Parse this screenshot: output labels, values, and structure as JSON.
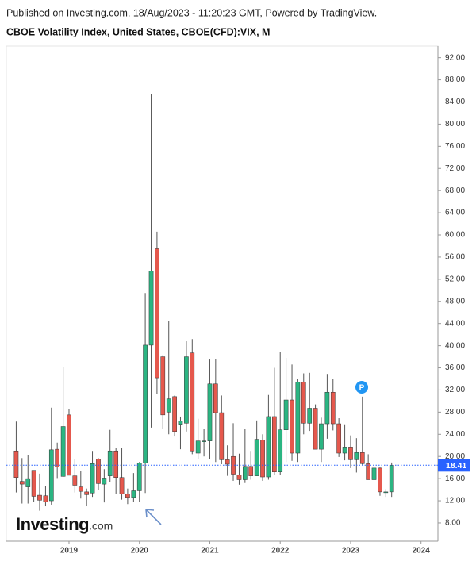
{
  "header": {
    "published": "Published on Investing.com, 18/Aug/2023 - 11:20:23 GMT, Powered by TradingView.",
    "title": "CBOE Volatility Index, United States, CBOE(CFD):VIX, M"
  },
  "logo": {
    "brand": "Investing",
    "suffix": ".com"
  },
  "badge": "P",
  "chart_data": {
    "type": "candlestick",
    "x": [
      2018.25,
      2018.333,
      2018.417,
      2018.5,
      2018.583,
      2018.667,
      2018.75,
      2018.833,
      2018.917,
      2019,
      2019.083,
      2019.167,
      2019.25,
      2019.333,
      2019.417,
      2019.5,
      2019.583,
      2019.667,
      2019.75,
      2019.833,
      2019.917,
      2020,
      2020.083,
      2020.167,
      2020.25,
      2020.333,
      2020.417,
      2020.5,
      2020.583,
      2020.667,
      2020.75,
      2020.833,
      2020.917,
      2021,
      2021.083,
      2021.167,
      2021.25,
      2021.333,
      2021.417,
      2021.5,
      2021.583,
      2021.667,
      2021.75,
      2021.833,
      2021.917,
      2022,
      2022.083,
      2022.167,
      2022.25,
      2022.333,
      2022.417,
      2022.5,
      2022.583,
      2022.667,
      2022.75,
      2022.833,
      2022.917,
      2023,
      2023.083,
      2023.167,
      2023.25,
      2023.333,
      2023.417,
      2023.5,
      2023.583
    ],
    "open": [
      21,
      15.5,
      14.5,
      17.5,
      13,
      12.9,
      12,
      21.3,
      16.4,
      27.5,
      16.5,
      14.5,
      13.6,
      13.4,
      19.5,
      15,
      16.5,
      21,
      16.2,
      13.2,
      12.6,
      13.8,
      18.8,
      40.1,
      57.5,
      38,
      28,
      30.8,
      25.8,
      26,
      38.7,
      20.6,
      22.8,
      22.8,
      33.1,
      27.9,
      19.4,
      20,
      16.7,
      15.8,
      18.2,
      16.5,
      23,
      16.3,
      27.2,
      17.2,
      24.8,
      30.2,
      20.6,
      33.4,
      26,
      28.7,
      21.3,
      25.9,
      31.6,
      25.9,
      20.6,
      21.7,
      19.4,
      20.7,
      18.7,
      15.8,
      17.9,
      13.6,
      13.6
    ],
    "high": [
      26.3,
      19.7,
      20.3,
      17.5,
      16.9,
      14.6,
      28.8,
      22.5,
      36.2,
      28.5,
      19.5,
      17.4,
      14.2,
      21,
      19.7,
      17.7,
      24.8,
      21.5,
      21.5,
      14.2,
      17,
      19,
      49.5,
      85.5,
      60.6,
      38.3,
      44.4,
      31,
      27.2,
      40.8,
      41.2,
      26.8,
      25,
      37.5,
      37.5,
      31,
      22,
      26,
      20.5,
      25,
      21,
      26.5,
      24,
      31.1,
      36,
      38.9,
      37.8,
      36.6,
      34,
      35,
      35.1,
      29.4,
      27,
      34.9,
      34,
      26.9,
      25.8,
      23.8,
      23.3,
      30.8,
      20.4,
      21.5,
      18,
      14.1,
      18.9
    ],
    "low": [
      13.5,
      11.5,
      11.5,
      11.8,
      10.2,
      11,
      11.3,
      16.1,
      16.3,
      16.7,
      13.5,
      12.4,
      11,
      12.7,
      13.9,
      11.7,
      15.4,
      13.3,
      12.2,
      11.4,
      11.8,
      11.8,
      13.4,
      25.2,
      31.2,
      25,
      24,
      23.6,
      21.3,
      24.5,
      20.4,
      19.5,
      20,
      19.5,
      19,
      18.6,
      16.5,
      15.6,
      14.9,
      15.2,
      15.8,
      16.5,
      15.6,
      15.8,
      16.6,
      16.6,
      19,
      19.2,
      19,
      24,
      24.6,
      21.9,
      19,
      23.2,
      24.7,
      19.9,
      19.3,
      17.9,
      17.1,
      18.4,
      15.8,
      15.6,
      12.9,
      12.7,
      12.7
    ],
    "close": [
      16.2,
      15,
      16,
      12.8,
      12.1,
      11.8,
      21.2,
      18.1,
      25.4,
      16.6,
      14.8,
      13.7,
      13.1,
      18.7,
      15.1,
      16.1,
      21,
      16.2,
      13.2,
      12.6,
      13.8,
      18.8,
      40.1,
      53.5,
      34.2,
      27.5,
      30.4,
      24.5,
      26.4,
      38,
      21,
      22.8,
      22.8,
      33.1,
      27.9,
      19.4,
      18.6,
      16.8,
      15.8,
      18.2,
      16.5,
      23.1,
      16.3,
      27.2,
      17.2,
      24.8,
      30.2,
      20.6,
      33.4,
      26,
      28.7,
      21.3,
      25.9,
      31.6,
      25.9,
      20.6,
      21.7,
      19.4,
      20.7,
      18.7,
      15.8,
      17.9,
      13.6,
      13.6,
      18.41
    ],
    "up_color": "#2bb582",
    "down_color": "#e5584d",
    "last_price": 18.41,
    "xlim": [
      2018.11,
      2024.24
    ],
    "xticks": [
      2019,
      2020,
      2021,
      2022,
      2023,
      2024
    ],
    "ylim": [
      4.7,
      94.1
    ],
    "yticks": [
      {
        "value": 8,
        "label": "8.00"
      },
      {
        "value": 12,
        "label": "12.00"
      },
      {
        "value": 16,
        "label": "16.00"
      },
      {
        "value": 20,
        "label": "20.00"
      },
      {
        "value": 24,
        "label": "24.00"
      },
      {
        "value": 28,
        "label": "28.00"
      },
      {
        "value": 32,
        "label": "32.00"
      },
      {
        "value": 36,
        "label": "36.00"
      },
      {
        "value": 40,
        "label": "40.00"
      },
      {
        "value": 44,
        "label": "44.00"
      },
      {
        "value": 48,
        "label": "48.00"
      },
      {
        "value": 52,
        "label": "52.00"
      },
      {
        "value": 56,
        "label": "56.00"
      },
      {
        "value": 60,
        "label": "60.00"
      },
      {
        "value": 64,
        "label": "64.00"
      },
      {
        "value": 68,
        "label": "68.00"
      },
      {
        "value": 72,
        "label": "72.00"
      },
      {
        "value": 76,
        "label": "76.00"
      },
      {
        "value": 80,
        "label": "80.00"
      },
      {
        "value": 84,
        "label": "84.00"
      },
      {
        "value": 88,
        "label": "88.00"
      },
      {
        "value": 92,
        "label": "92.00"
      }
    ]
  }
}
